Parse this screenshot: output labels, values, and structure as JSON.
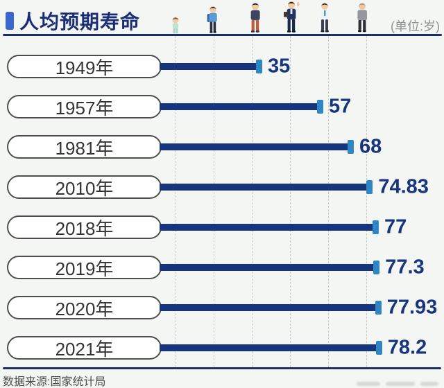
{
  "header": {
    "title": "人均预期寿命",
    "unit_label": "(单位:岁)"
  },
  "footer": {
    "source": "数据来源:国家统计局"
  },
  "figures": [
    {
      "name": "toddler-figure"
    },
    {
      "name": "student-figure"
    },
    {
      "name": "young-adult-figure"
    },
    {
      "name": "businessman-figure"
    },
    {
      "name": "middle-aged-figure"
    },
    {
      "name": "elderly-figure"
    }
  ],
  "colors": {
    "bar": "#16357e",
    "bar_cap": "#2e86c5",
    "title": "#1b2d74",
    "value_label": "#16357e",
    "divider_line": "#1d2e6b",
    "grid_line": "#c7cbca",
    "background": "#f4f6f3",
    "pill_border": "#4d4d4d",
    "pill_fill": "#ffffff",
    "unit_text": "#8f9192"
  },
  "chart_data": {
    "type": "bar",
    "orientation": "horizontal",
    "title": "人均预期寿命",
    "unit": "岁",
    "categories": [
      "1949年",
      "1957年",
      "1981年",
      "2010年",
      "2018年",
      "2019年",
      "2020年",
      "2021年"
    ],
    "values": [
      35,
      57,
      68,
      74.83,
      77,
      77.3,
      77.93,
      78.2
    ],
    "value_labels": [
      "35",
      "57",
      "68",
      "74.83",
      "77",
      "77.3",
      "77.93",
      "78.2"
    ],
    "xlim": [
      0,
      82
    ],
    "grid": "dashed-vertical",
    "legend": "none",
    "source": "数据来源:国家统计局"
  }
}
